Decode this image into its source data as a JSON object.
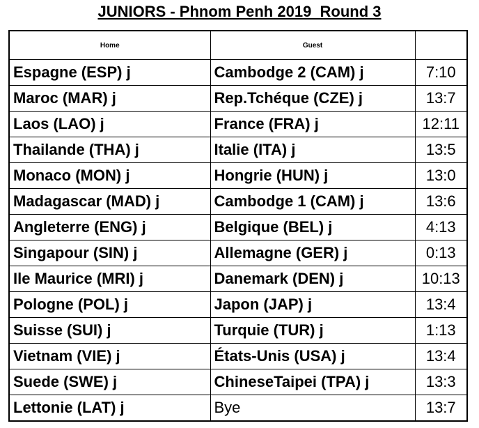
{
  "header": {
    "title": "JUNIORS - Phnom Penh 2019  Round 3"
  },
  "table": {
    "columns": [
      "Home",
      "Guest"
    ],
    "rows": [
      [
        "Espagne (ESP) j",
        "Cambodge 2 (CAM) j",
        "7:10"
      ],
      [
        "Maroc (MAR) j",
        "Rep.Tchéque (CZE) j",
        "13:7"
      ],
      [
        "Laos (LAO) j",
        "France (FRA) j",
        "12:11"
      ],
      [
        "Thailande (THA) j",
        "Italie (ITA) j",
        "13:5"
      ],
      [
        "Monaco (MON) j",
        "Hongrie (HUN) j",
        "13:0"
      ],
      [
        "Madagascar (MAD) j",
        "Cambodge 1 (CAM) j",
        "13:6"
      ],
      [
        "Angleterre (ENG) j",
        "Belgique (BEL) j",
        "4:13"
      ],
      [
        "Singapour (SIN) j",
        "Allemagne (GER) j",
        "0:13"
      ],
      [
        "Ile Maurice (MRI) j",
        "Danemark (DEN) j",
        "10:13"
      ],
      [
        "Pologne (POL) j",
        "Japon (JAP) j",
        "13:4"
      ],
      [
        "Suisse (SUI) j",
        "Turquie (TUR) j",
        "1:13"
      ],
      [
        "Vietnam (VIE) j",
        "États-Unis (USA) j",
        "13:4"
      ],
      [
        "Suede (SWE) j",
        "ChineseTaipei (TPA) j",
        "13:3"
      ],
      [
        "Lettonie (LAT) j",
        "Bye",
        "13:7"
      ]
    ]
  }
}
